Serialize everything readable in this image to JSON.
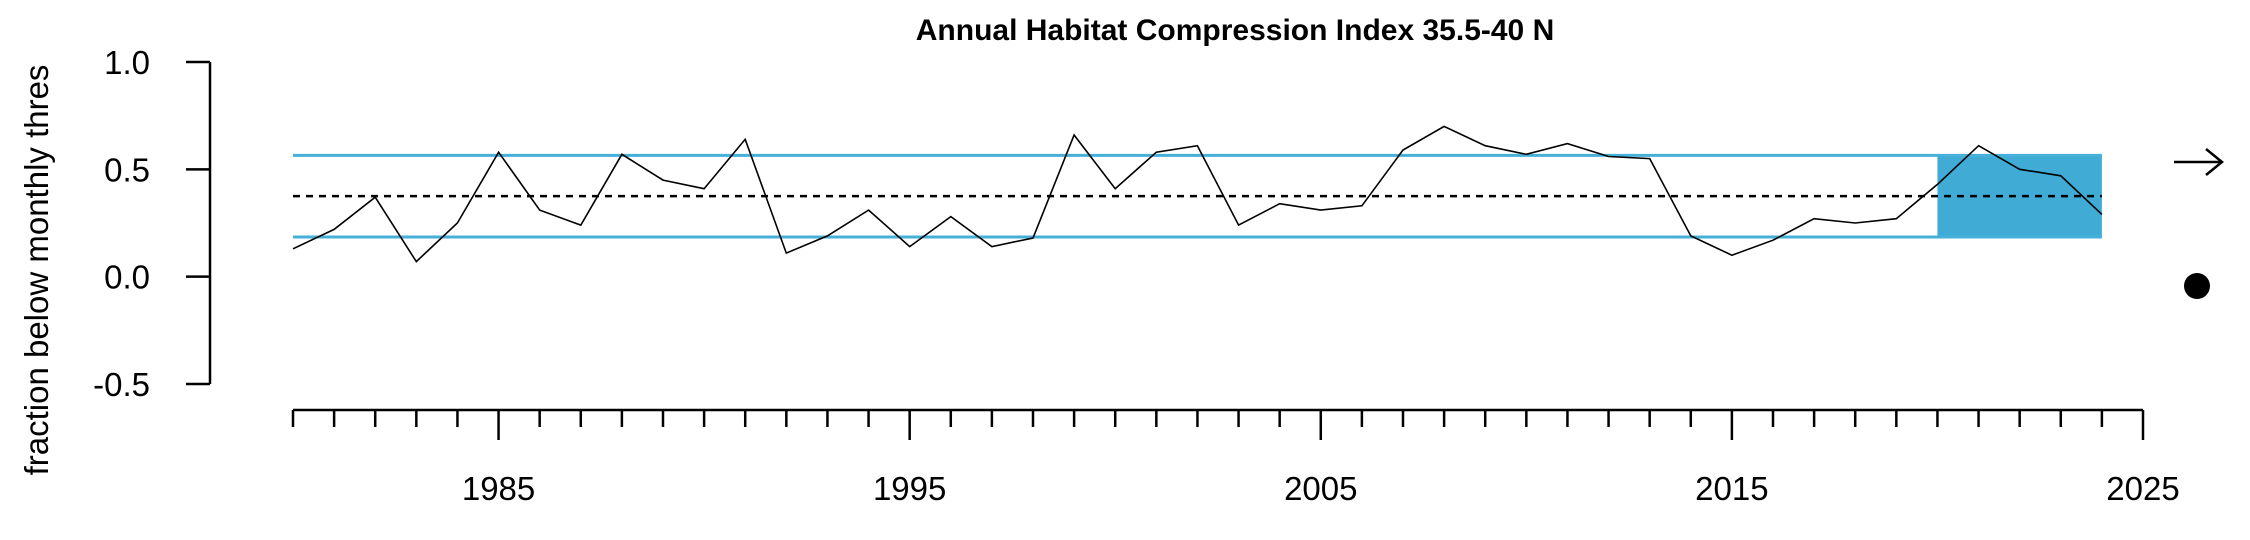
{
  "chart_data": {
    "type": "line",
    "title": "Annual Habitat Compression Index 35.5-40 N",
    "ylabel": "fraction below monthly thres",
    "xlabel": "",
    "xlim": [
      1980,
      2025
    ],
    "ylim": [
      -0.5,
      1.0
    ],
    "x_ticks": [
      1985,
      1995,
      2005,
      2015,
      2025
    ],
    "x_minor_ticks": [
      1980,
      1981,
      1982,
      1983,
      1984,
      1985,
      1986,
      1987,
      1988,
      1989,
      1990,
      1991,
      1992,
      1993,
      1994,
      1995,
      1996,
      1997,
      1998,
      1999,
      2000,
      2001,
      2002,
      2003,
      2004,
      2005,
      2006,
      2007,
      2008,
      2009,
      2010,
      2011,
      2012,
      2013,
      2014,
      2015,
      2016,
      2017,
      2018,
      2019,
      2020,
      2021,
      2022,
      2023,
      2024,
      2025
    ],
    "y_ticks": [
      -0.5,
      0.0,
      0.5,
      1.0
    ],
    "y_tick_labels": [
      "-0.5",
      "0.0",
      "0.5",
      "1.0"
    ],
    "series": [
      {
        "x": [
          1980,
          1981,
          1982,
          1983,
          1984,
          1985,
          1986,
          1987,
          1988,
          1989,
          1990,
          1991,
          1992,
          1993,
          1994,
          1995,
          1996,
          1997,
          1998,
          1999,
          2000,
          2001,
          2002,
          2003,
          2004,
          2005,
          2006,
          2007,
          2008,
          2009,
          2010,
          2011,
          2012,
          2013,
          2014,
          2015,
          2016,
          2017,
          2018,
          2019,
          2020,
          2021,
          2022,
          2023,
          2024
        ],
        "values": [
          0.13,
          0.22,
          0.37,
          0.07,
          0.25,
          0.58,
          0.31,
          0.24,
          0.57,
          0.45,
          0.41,
          0.64,
          0.11,
          0.19,
          0.31,
          0.14,
          0.28,
          0.14,
          0.18,
          0.66,
          0.41,
          0.58,
          0.61,
          0.24,
          0.34,
          0.31,
          0.33,
          0.59,
          0.7,
          0.61,
          0.57,
          0.62,
          0.56,
          0.55,
          0.19,
          0.1,
          0.17,
          0.27,
          0.25,
          0.27,
          0.43,
          0.61,
          0.5,
          0.47,
          0.29
        ],
        "color": "#000000"
      }
    ],
    "reference_lines": {
      "mean": 0.375,
      "upper_sd": 0.565,
      "lower_sd": 0.185,
      "sd_color": "#46b0d9",
      "mean_style": "dotted"
    },
    "highlight_region": {
      "x_start": 2020,
      "x_end": 2024,
      "y_low": 0.185,
      "y_high": 0.565,
      "color": "#40acd6"
    },
    "trend_indicators": {
      "recent_trend": "right-arrow-icon",
      "recent_mean": "filled-circle-icon"
    }
  }
}
